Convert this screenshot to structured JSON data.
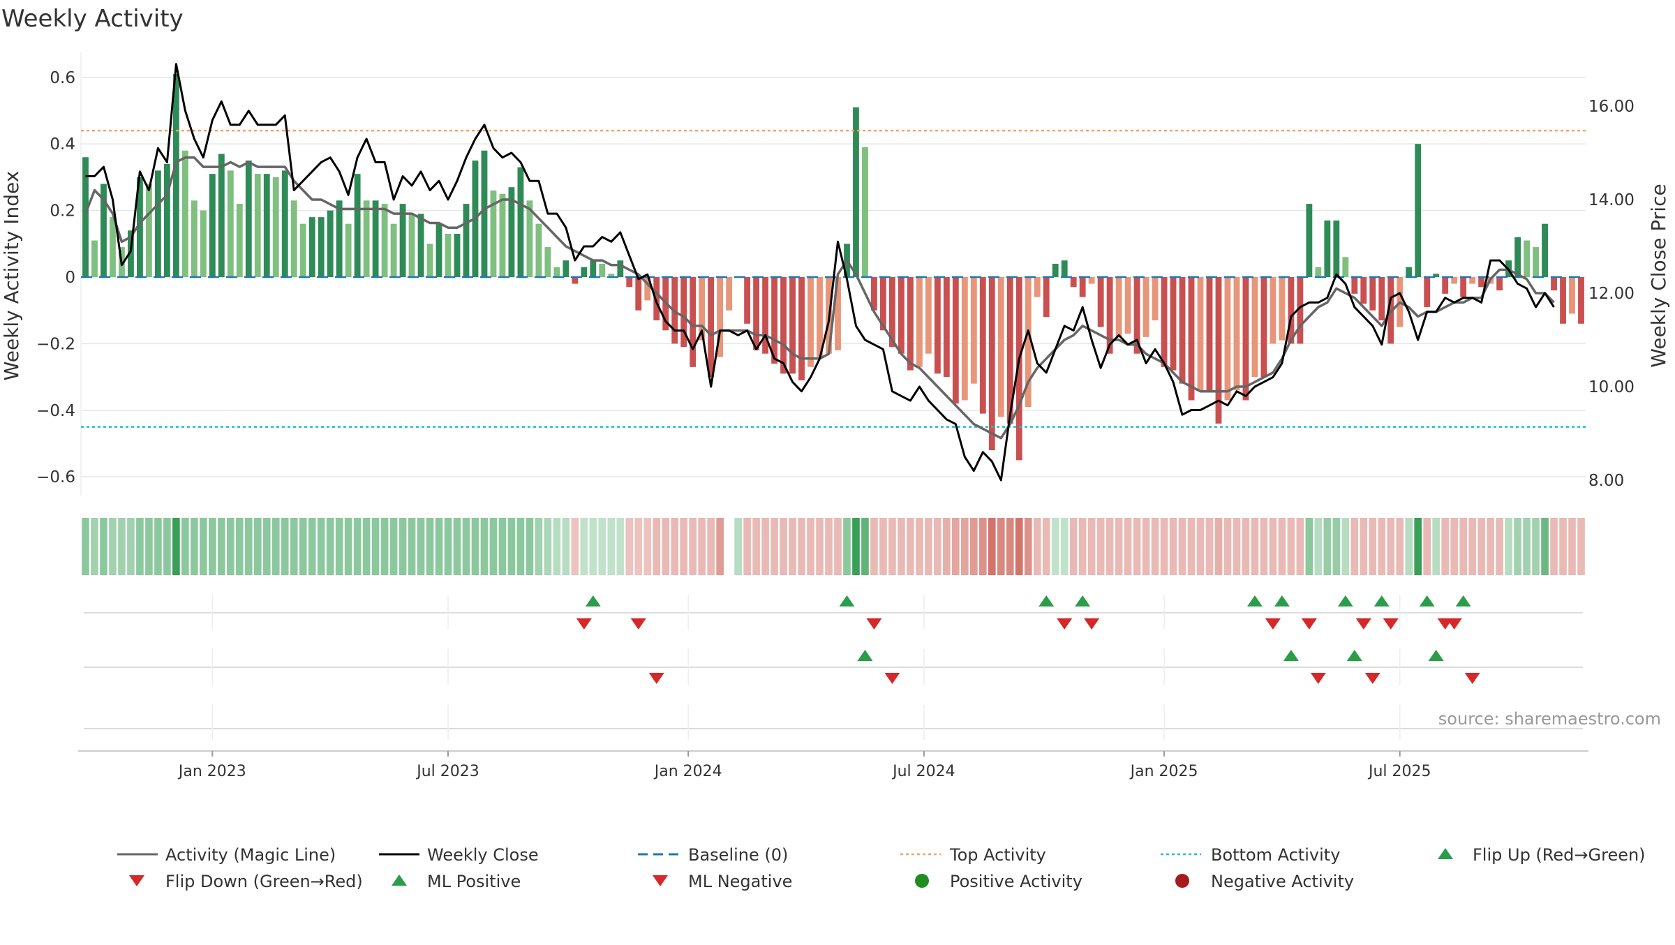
{
  "title": "Weekly Activity",
  "source": "source: sharemaestro.com",
  "colors": {
    "green_dark": "#2e8b57",
    "green_light": "#7fbf7f",
    "red_dark": "#c95050",
    "red_light": "#e8967a",
    "magic_line": "#666666",
    "close_line": "#000000",
    "baseline": "#1f77b4",
    "top_line": "#f4a261",
    "bottom_line": "#17becf",
    "marker_green": "#2a9d4a",
    "marker_red": "#d62828"
  },
  "chart_data": {
    "type": "bar",
    "title": "Weekly Activity",
    "ylabel": "Weekly Activity Index",
    "y2label": "Weekly Close Price",
    "ylim": [
      -0.65,
      0.65
    ],
    "y2lim": [
      7.6,
      17.0
    ],
    "y_ticks": [
      0.6,
      0.4,
      0.2,
      0,
      -0.2,
      -0.4,
      -0.6
    ],
    "y_tick_labels": [
      "0.6",
      "0.4",
      "0.2",
      "0",
      "−0.2",
      "−0.4",
      "−0.6"
    ],
    "y2_ticks": [
      16,
      14,
      12,
      10,
      8
    ],
    "y2_tick_labels": [
      "16.00",
      "14.00",
      "12.00",
      "10.00",
      "8.00"
    ],
    "x_ticks": [
      {
        "label": "Jan 2023",
        "week": 14
      },
      {
        "label": "Jul 2023",
        "week": 40
      },
      {
        "label": "Jan 2024",
        "week": 66.5
      },
      {
        "label": "Jul 2024",
        "week": 92.5
      },
      {
        "label": "Jan 2025",
        "week": 119
      },
      {
        "label": "Jul 2025",
        "week": 145
      }
    ],
    "top_activity": 0.44,
    "bottom_activity": -0.45,
    "activity": [
      0.36,
      0.11,
      0.28,
      0.18,
      0.09,
      0.14,
      0.3,
      0.28,
      0.32,
      0.34,
      0.61,
      0.38,
      0.23,
      0.2,
      0.31,
      0.37,
      0.32,
      0.22,
      0.35,
      0.31,
      0.31,
      0.3,
      0.32,
      0.23,
      0.16,
      0.18,
      0.18,
      0.2,
      0.23,
      0.16,
      0.31,
      0.23,
      0.23,
      0.22,
      0.16,
      0.22,
      0.19,
      0.19,
      0.1,
      0.16,
      0.13,
      0.13,
      0.22,
      0.35,
      0.38,
      0.26,
      0.25,
      0.27,
      0.33,
      0.23,
      0.16,
      0.09,
      0.03,
      0.05,
      -0.02,
      0.03,
      0.05,
      0.04,
      0.01,
      0.05,
      -0.03,
      -0.1,
      -0.07,
      -0.13,
      -0.16,
      -0.2,
      -0.21,
      -0.27,
      -0.19,
      -0.3,
      -0.24,
      -0.1,
      0.0,
      -0.14,
      -0.22,
      -0.23,
      -0.26,
      -0.29,
      -0.29,
      -0.31,
      -0.27,
      -0.24,
      -0.23,
      -0.22,
      0.1,
      0.51,
      0.39,
      -0.1,
      -0.16,
      -0.21,
      -0.23,
      -0.28,
      -0.27,
      -0.23,
      -0.29,
      -0.3,
      -0.38,
      -0.37,
      -0.32,
      -0.41,
      -0.52,
      -0.42,
      -0.44,
      -0.55,
      -0.39,
      -0.06,
      -0.12,
      0.04,
      0.05,
      -0.03,
      -0.06,
      -0.02,
      -0.15,
      -0.23,
      -0.18,
      -0.17,
      -0.23,
      -0.18,
      -0.13,
      -0.27,
      -0.28,
      -0.32,
      -0.37,
      -0.34,
      -0.34,
      -0.44,
      -0.37,
      -0.34,
      -0.37,
      -0.3,
      -0.3,
      -0.2,
      -0.19,
      -0.2,
      -0.2,
      0.22,
      0.03,
      0.17,
      0.17,
      0.06,
      -0.05,
      -0.08,
      -0.1,
      -0.13,
      -0.2,
      -0.15,
      0.03,
      0.4,
      -0.09,
      0.01,
      -0.05,
      -0.02,
      -0.06,
      -0.02,
      -0.03,
      -0.02,
      -0.04,
      0.05,
      0.12,
      0.11,
      0.09,
      0.16,
      -0.04,
      -0.14,
      -0.11,
      -0.14
    ],
    "close": [
      14.5,
      14.5,
      14.7,
      14.0,
      12.6,
      12.9,
      14.6,
      14.2,
      15.1,
      14.8,
      16.9,
      15.9,
      15.3,
      14.9,
      15.7,
      16.1,
      15.6,
      15.6,
      15.9,
      15.6,
      15.6,
      15.6,
      15.8,
      14.2,
      14.4,
      14.6,
      14.8,
      14.9,
      14.6,
      14.1,
      14.9,
      15.3,
      14.8,
      14.8,
      14.0,
      14.5,
      14.3,
      14.6,
      14.2,
      14.4,
      14.0,
      14.4,
      14.9,
      15.3,
      15.6,
      15.1,
      14.9,
      15.0,
      14.8,
      14.4,
      14.4,
      13.7,
      13.7,
      13.4,
      12.7,
      13.0,
      13.0,
      13.2,
      13.1,
      13.3,
      12.8,
      12.3,
      12.4,
      11.8,
      11.4,
      11.2,
      11.2,
      10.8,
      11.2,
      10.0,
      11.2,
      11.2,
      11.1,
      11.2,
      10.8,
      11.1,
      10.6,
      10.5,
      10.1,
      9.9,
      10.2,
      10.6,
      11.4,
      13.1,
      12.3,
      11.3,
      11.0,
      10.9,
      10.8,
      9.9,
      9.8,
      9.7,
      10.0,
      9.7,
      9.5,
      9.3,
      9.2,
      8.5,
      8.2,
      8.6,
      8.4,
      8.0,
      9.4,
      10.6,
      11.2,
      10.5,
      10.3,
      10.8,
      11.3,
      11.2,
      11.7,
      11.0,
      10.4,
      10.9,
      11.1,
      10.9,
      11.0,
      10.5,
      10.8,
      10.5,
      10.1,
      9.4,
      9.5,
      9.5,
      9.6,
      9.7,
      9.6,
      9.9,
      9.8,
      10.0,
      10.1,
      10.2,
      10.5,
      11.5,
      11.7,
      11.8,
      11.8,
      11.9,
      12.4,
      12.2,
      11.7,
      11.5,
      11.3,
      10.9,
      11.9,
      12.0,
      11.6,
      11.0,
      11.6,
      11.6,
      11.9,
      11.8,
      11.9,
      11.9,
      11.8,
      12.7,
      12.7,
      12.5,
      12.2,
      12.1,
      11.7,
      12.0,
      11.7
    ],
    "magic_line": [
      13.7,
      14.2,
      14.0,
      13.7,
      13.1,
      13.2,
      13.5,
      13.7,
      13.9,
      14.1,
      14.8,
      14.9,
      14.9,
      14.7,
      14.7,
      14.7,
      14.8,
      14.7,
      14.8,
      14.7,
      14.7,
      14.7,
      14.7,
      14.4,
      14.2,
      14.0,
      14.0,
      13.9,
      13.8,
      13.8,
      13.8,
      13.8,
      13.8,
      13.8,
      13.7,
      13.7,
      13.7,
      13.6,
      13.5,
      13.5,
      13.4,
      13.4,
      13.5,
      13.6,
      13.8,
      13.9,
      14.0,
      14.0,
      13.9,
      13.8,
      13.6,
      13.4,
      13.2,
      13.0,
      12.9,
      12.8,
      12.7,
      12.7,
      12.6,
      12.6,
      12.5,
      12.4,
      12.2,
      12.0,
      11.8,
      11.6,
      11.5,
      11.3,
      11.3,
      11.1,
      11.2,
      11.2,
      11.2,
      11.2,
      11.1,
      11.1,
      11.0,
      10.9,
      10.7,
      10.6,
      10.6,
      10.6,
      10.7,
      12.4,
      12.7,
      12.4,
      12.0,
      11.6,
      11.3,
      11.0,
      10.7,
      10.5,
      10.4,
      10.2,
      10.0,
      9.8,
      9.6,
      9.4,
      9.2,
      9.1,
      9.0,
      8.9,
      9.2,
      9.6,
      10.1,
      10.4,
      10.6,
      10.8,
      11.0,
      11.1,
      11.3,
      11.2,
      11.1,
      11.0,
      11.0,
      10.9,
      10.9,
      10.7,
      10.6,
      10.5,
      10.3,
      10.1,
      10.0,
      9.9,
      9.9,
      9.9,
      9.9,
      10.0,
      10.0,
      10.1,
      10.2,
      10.3,
      10.6,
      11.0,
      11.3,
      11.5,
      11.7,
      11.8,
      12.1,
      12.0,
      11.9,
      11.7,
      11.5,
      11.3,
      11.6,
      11.8,
      11.7,
      11.5,
      11.6,
      11.6,
      11.7,
      11.8,
      11.8,
      11.9,
      11.9,
      12.3,
      12.5,
      12.5,
      12.4,
      12.3,
      12.0,
      12.0,
      11.8
    ],
    "strip_levels": [
      0.55,
      0.45,
      0.55,
      0.45,
      0.45,
      0.45,
      0.55,
      0.55,
      0.55,
      0.55,
      0.95,
      0.55,
      0.55,
      0.55,
      0.55,
      0.55,
      0.55,
      0.55,
      0.55,
      0.55,
      0.55,
      0.55,
      0.55,
      0.55,
      0.55,
      0.55,
      0.55,
      0.55,
      0.55,
      0.55,
      0.55,
      0.55,
      0.55,
      0.55,
      0.55,
      0.55,
      0.55,
      0.55,
      0.55,
      0.55,
      0.55,
      0.55,
      0.55,
      0.55,
      0.55,
      0.55,
      0.55,
      0.55,
      0.55,
      0.55,
      0.45,
      0.4,
      0.35,
      0.35,
      0.3,
      0.3,
      0.3,
      0.3,
      0.3,
      0.3,
      0.3,
      0.3,
      0.3,
      0.35,
      0.35,
      0.35,
      0.35,
      0.35,
      0.35,
      0.35,
      0.5,
      0.0,
      0.35,
      0.35,
      0.35,
      0.35,
      0.35,
      0.35,
      0.35,
      0.35,
      0.35,
      0.35,
      0.35,
      0.35,
      0.55,
      0.95,
      0.75,
      0.35,
      0.35,
      0.35,
      0.35,
      0.35,
      0.35,
      0.35,
      0.35,
      0.4,
      0.45,
      0.45,
      0.5,
      0.55,
      0.7,
      0.6,
      0.6,
      0.7,
      0.55,
      0.35,
      0.35,
      0.3,
      0.3,
      0.35,
      0.35,
      0.35,
      0.35,
      0.35,
      0.35,
      0.35,
      0.35,
      0.35,
      0.35,
      0.35,
      0.35,
      0.35,
      0.35,
      0.35,
      0.35,
      0.4,
      0.35,
      0.35,
      0.35,
      0.35,
      0.35,
      0.35,
      0.35,
      0.35,
      0.35,
      0.55,
      0.35,
      0.5,
      0.5,
      0.35,
      0.35,
      0.35,
      0.35,
      0.35,
      0.35,
      0.35,
      0.35,
      0.95,
      0.35,
      0.35,
      0.35,
      0.35,
      0.35,
      0.35,
      0.35,
      0.35,
      0.35,
      0.35,
      0.45,
      0.45,
      0.45,
      0.7,
      0.35,
      0.35,
      0.35,
      0.35
    ],
    "flip_up_weeks": [
      56,
      84,
      106,
      110,
      129,
      132,
      139,
      143,
      148,
      152
    ],
    "flip_down_weeks": [
      55,
      61,
      87,
      108,
      111,
      131,
      135,
      141,
      144,
      150,
      151
    ],
    "ml_positive_weeks": [
      86,
      133,
      140,
      149
    ],
    "ml_negative_weeks": [
      63,
      89,
      136,
      142,
      153
    ],
    "legend": [
      "Activity (Magic Line)",
      "Weekly Close",
      "Baseline (0)",
      "Top Activity",
      "Bottom Activity",
      "Flip Up (Red→Green)",
      "Flip Down (Green→Red)",
      "ML Positive",
      "ML Negative",
      "Positive Activity",
      "Negative Activity"
    ]
  }
}
